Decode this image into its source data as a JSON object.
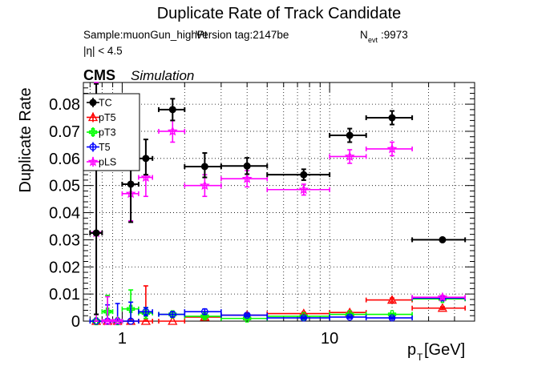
{
  "chart_data": {
    "type": "scatter",
    "title": "Duplicate Rate of Track Candidate",
    "info": {
      "sample": "Sample:muonGun_highPt",
      "version": "Version tag:2147be",
      "nevt_label": "N",
      "nevt_sub": "evt",
      "nevt_value": ":9973",
      "eta_cut": "|η| < 4.5"
    },
    "experiment": "CMS",
    "experiment_sub": "Simulation",
    "xlabel_main": "p",
    "xlabel_sub": "T",
    "xlabel_unit": " [GeV]",
    "ylabel": "Duplicate Rate",
    "x_scale": "log",
    "xlim": [
      0.65,
      50
    ],
    "ylim": [
      0,
      0.088
    ],
    "grid": true,
    "legend_position": "top-left",
    "x_ticks": [
      {
        "v": 1,
        "label": "1"
      },
      {
        "v": 10,
        "label": "10"
      }
    ],
    "y_ticks": [
      {
        "v": 0,
        "label": "0"
      },
      {
        "v": 0.01,
        "label": "0.01"
      },
      {
        "v": 0.02,
        "label": "0.02"
      },
      {
        "v": 0.03,
        "label": "0.03"
      },
      {
        "v": 0.04,
        "label": "0.04"
      },
      {
        "v": 0.05,
        "label": "0.05"
      },
      {
        "v": 0.06,
        "label": "0.06"
      },
      {
        "v": 0.07,
        "label": "0.07"
      },
      {
        "v": 0.08,
        "label": "0.08"
      }
    ],
    "series": [
      {
        "name": "TC",
        "color": "#000000",
        "marker": "filled-circle",
        "points": [
          {
            "x": 0.75,
            "xlo": 0.7,
            "xhi": 0.8,
            "y": 0.0325,
            "elo": 0.03,
            "ehi": 0.055
          },
          {
            "x": 1.1,
            "xlo": 1.0,
            "xhi": 1.2,
            "y": 0.0505,
            "elo": 0.014,
            "ehi": 0.011
          },
          {
            "x": 1.3,
            "xlo": 1.2,
            "xhi": 1.4,
            "y": 0.06,
            "elo": 0.006,
            "ehi": 0.007
          },
          {
            "x": 1.75,
            "xlo": 1.5,
            "xhi": 2.0,
            "y": 0.078,
            "elo": 0.004,
            "ehi": 0.004
          },
          {
            "x": 2.5,
            "xlo": 2.0,
            "xhi": 3.0,
            "y": 0.057,
            "elo": 0.004,
            "ehi": 0.005
          },
          {
            "x": 4.0,
            "xlo": 3.0,
            "xhi": 5.0,
            "y": 0.0572,
            "elo": 0.003,
            "ehi": 0.003
          },
          {
            "x": 7.5,
            "xlo": 5.0,
            "xhi": 10.0,
            "y": 0.054,
            "elo": 0.002,
            "ehi": 0.002
          },
          {
            "x": 12.5,
            "xlo": 10.0,
            "xhi": 15.0,
            "y": 0.0685,
            "elo": 0.0025,
            "ehi": 0.0025
          },
          {
            "x": 20.0,
            "xlo": 15.0,
            "xhi": 25.0,
            "y": 0.075,
            "elo": 0.0025,
            "ehi": 0.0025
          },
          {
            "x": 35.0,
            "xlo": 25.0,
            "xhi": 45.0,
            "y": 0.03,
            "elo": 0.0005,
            "ehi": 0.0005
          }
        ]
      },
      {
        "name": "pT5",
        "color": "#ff0000",
        "marker": "open-triangle",
        "points": [
          {
            "x": 0.75,
            "xlo": 0.7,
            "xhi": 0.8,
            "y": 0.0,
            "elo": 0.0,
            "ehi": 0.0
          },
          {
            "x": 0.85,
            "xlo": 0.8,
            "xhi": 0.9,
            "y": 0.0,
            "elo": 0.0,
            "ehi": 0.0
          },
          {
            "x": 0.95,
            "xlo": 0.9,
            "xhi": 1.0,
            "y": 0.0,
            "elo": 0.0,
            "ehi": 0.0
          },
          {
            "x": 1.1,
            "xlo": 1.0,
            "xhi": 1.2,
            "y": 0.0,
            "elo": 0.0,
            "ehi": 0.0
          },
          {
            "x": 1.3,
            "xlo": 1.2,
            "xhi": 1.4,
            "y": 0.0,
            "elo": 0.0,
            "ehi": 0.013
          },
          {
            "x": 1.75,
            "xlo": 1.5,
            "xhi": 2.0,
            "y": 0.0,
            "elo": 0.0,
            "ehi": 0.0
          },
          {
            "x": 2.5,
            "xlo": 2.0,
            "xhi": 3.0,
            "y": 0.0015,
            "elo": 0.001,
            "ehi": 0.001
          },
          {
            "x": 4.0,
            "xlo": 3.0,
            "xhi": 5.0,
            "y": 0.0022,
            "elo": 0.0008,
            "ehi": 0.0008
          },
          {
            "x": 7.5,
            "xlo": 5.0,
            "xhi": 10.0,
            "y": 0.0028,
            "elo": 0.0005,
            "ehi": 0.0005
          },
          {
            "x": 12.5,
            "xlo": 10.0,
            "xhi": 15.0,
            "y": 0.0032,
            "elo": 0.0005,
            "ehi": 0.0005
          },
          {
            "x": 20.0,
            "xlo": 15.0,
            "xhi": 25.0,
            "y": 0.0078,
            "elo": 0.0007,
            "ehi": 0.0007
          },
          {
            "x": 35.0,
            "xlo": 25.0,
            "xhi": 45.0,
            "y": 0.0048,
            "elo": 0.0005,
            "ehi": 0.0005
          }
        ]
      },
      {
        "name": "pT3",
        "color": "#00ff00",
        "marker": "open-cross",
        "points": [
          {
            "x": 0.75,
            "xlo": 0.7,
            "xhi": 0.8,
            "y": 0.0,
            "elo": 0.0,
            "ehi": 0.0
          },
          {
            "x": 0.85,
            "xlo": 0.8,
            "xhi": 0.9,
            "y": 0.0035,
            "elo": 0.0035,
            "ehi": 0.006
          },
          {
            "x": 0.95,
            "xlo": 0.9,
            "xhi": 1.0,
            "y": 0.0,
            "elo": 0.0,
            "ehi": 0.0
          },
          {
            "x": 1.1,
            "xlo": 1.0,
            "xhi": 1.2,
            "y": 0.0045,
            "elo": 0.0045,
            "ehi": 0.007
          },
          {
            "x": 1.3,
            "xlo": 1.2,
            "xhi": 1.4,
            "y": 0.003,
            "elo": 0.002,
            "ehi": 0.002
          },
          {
            "x": 1.75,
            "xlo": 1.5,
            "xhi": 2.0,
            "y": 0.0025,
            "elo": 0.001,
            "ehi": 0.001
          },
          {
            "x": 2.5,
            "xlo": 2.0,
            "xhi": 3.0,
            "y": 0.0018,
            "elo": 0.0008,
            "ehi": 0.0008
          },
          {
            "x": 4.0,
            "xlo": 3.0,
            "xhi": 5.0,
            "y": 0.001,
            "elo": 0.0005,
            "ehi": 0.0005
          },
          {
            "x": 7.5,
            "xlo": 5.0,
            "xhi": 10.0,
            "y": 0.0018,
            "elo": 0.0004,
            "ehi": 0.0004
          },
          {
            "x": 12.5,
            "xlo": 10.0,
            "xhi": 15.0,
            "y": 0.0025,
            "elo": 0.0004,
            "ehi": 0.0004
          },
          {
            "x": 20.0,
            "xlo": 15.0,
            "xhi": 25.0,
            "y": 0.0025,
            "elo": 0.0004,
            "ehi": 0.0004
          },
          {
            "x": 35.0,
            "xlo": 25.0,
            "xhi": 45.0,
            "y": 0.0082,
            "elo": 0.0006,
            "ehi": 0.0006
          }
        ]
      },
      {
        "name": "T5",
        "color": "#0000ff",
        "marker": "open-circle",
        "points": [
          {
            "x": 0.75,
            "xlo": 0.7,
            "xhi": 0.8,
            "y": 0.0,
            "elo": 0.0,
            "ehi": 0.0
          },
          {
            "x": 0.85,
            "xlo": 0.8,
            "xhi": 0.9,
            "y": 0.0,
            "elo": 0.0,
            "ehi": 0.006
          },
          {
            "x": 0.95,
            "xlo": 0.9,
            "xhi": 1.0,
            "y": 0.0,
            "elo": 0.0,
            "ehi": 0.0065
          },
          {
            "x": 1.1,
            "xlo": 1.0,
            "xhi": 1.2,
            "y": 0.0,
            "elo": 0.0,
            "ehi": 0.007
          },
          {
            "x": 1.3,
            "xlo": 1.2,
            "xhi": 1.4,
            "y": 0.0035,
            "elo": 0.0015,
            "ehi": 0.0015
          },
          {
            "x": 1.75,
            "xlo": 1.5,
            "xhi": 2.0,
            "y": 0.0025,
            "elo": 0.001,
            "ehi": 0.001
          },
          {
            "x": 2.5,
            "xlo": 2.0,
            "xhi": 3.0,
            "y": 0.0035,
            "elo": 0.001,
            "ehi": 0.001
          },
          {
            "x": 4.0,
            "xlo": 3.0,
            "xhi": 5.0,
            "y": 0.0022,
            "elo": 0.0005,
            "ehi": 0.0005
          },
          {
            "x": 7.5,
            "xlo": 5.0,
            "xhi": 10.0,
            "y": 0.0012,
            "elo": 0.0004,
            "ehi": 0.0004
          },
          {
            "x": 12.5,
            "xlo": 10.0,
            "xhi": 15.0,
            "y": 0.0015,
            "elo": 0.0004,
            "ehi": 0.0004
          },
          {
            "x": 20.0,
            "xlo": 15.0,
            "xhi": 25.0,
            "y": 0.0012,
            "elo": 0.0004,
            "ehi": 0.0004
          },
          {
            "x": 35.0,
            "xlo": 25.0,
            "xhi": 45.0,
            "y": 0.0085,
            "elo": 0.0006,
            "ehi": 0.0006
          }
        ]
      },
      {
        "name": "pLS",
        "color": "#ff00ff",
        "marker": "open-star",
        "points": [
          {
            "x": 0.75,
            "xlo": 0.7,
            "xhi": 0.8,
            "y": 0.0325,
            "elo": 0.0325,
            "ehi": 0.06
          },
          {
            "x": 0.85,
            "xlo": 0.8,
            "xhi": 0.9,
            "y": 0.0,
            "elo": 0.0,
            "ehi": 0.009
          },
          {
            "x": 0.95,
            "xlo": 0.9,
            "xhi": 1.0,
            "y": 0.0,
            "elo": 0.0,
            "ehi": 0.0
          },
          {
            "x": 1.1,
            "xlo": 1.0,
            "xhi": 1.2,
            "y": 0.047,
            "elo": 0.01,
            "ehi": 0.01
          },
          {
            "x": 1.3,
            "xlo": 1.2,
            "xhi": 1.4,
            "y": 0.053,
            "elo": 0.007,
            "ehi": 0.007
          },
          {
            "x": 1.75,
            "xlo": 1.5,
            "xhi": 2.0,
            "y": 0.07,
            "elo": 0.004,
            "ehi": 0.004
          },
          {
            "x": 2.5,
            "xlo": 2.0,
            "xhi": 3.0,
            "y": 0.05,
            "elo": 0.004,
            "ehi": 0.004
          },
          {
            "x": 4.0,
            "xlo": 3.0,
            "xhi": 5.0,
            "y": 0.0525,
            "elo": 0.003,
            "ehi": 0.003
          },
          {
            "x": 7.5,
            "xlo": 5.0,
            "xhi": 10.0,
            "y": 0.0485,
            "elo": 0.002,
            "ehi": 0.002
          },
          {
            "x": 12.5,
            "xlo": 10.0,
            "xhi": 15.0,
            "y": 0.0607,
            "elo": 0.0025,
            "ehi": 0.0025
          },
          {
            "x": 20.0,
            "xlo": 15.0,
            "xhi": 25.0,
            "y": 0.0635,
            "elo": 0.0025,
            "ehi": 0.0025
          },
          {
            "x": 35.0,
            "xlo": 25.0,
            "xhi": 45.0,
            "y": 0.0088,
            "elo": 0.0006,
            "ehi": 0.0006
          }
        ]
      }
    ]
  }
}
